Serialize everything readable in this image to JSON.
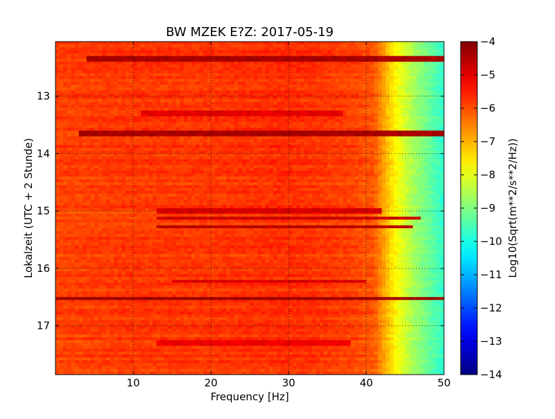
{
  "chart_data": {
    "type": "heatmap",
    "title": "BW MZEK E?Z: 2017-05-19",
    "xlabel": "Frequency [Hz]",
    "ylabel": "Lokalzeit (UTC + 2 Stunde)",
    "xlim": [
      0,
      50
    ],
    "ylim": [
      17.85,
      12.05
    ],
    "y_inverted": true,
    "grid": true,
    "x_ticks": [
      10,
      20,
      30,
      40,
      50
    ],
    "y_ticks": [
      13,
      14,
      15,
      16,
      17
    ],
    "colorbar": {
      "label": "Log10(Sqrt(m**2/s**2/Hz))",
      "range": [
        -14,
        -4
      ],
      "ticks": [
        -4,
        -5,
        -6,
        -7,
        -8,
        -9,
        -10,
        -11,
        -12,
        -13,
        -14
      ],
      "colormap": "jet"
    },
    "spectral_profile": {
      "frequency_hz": [
        0,
        10,
        20,
        30,
        35,
        38,
        41,
        42,
        43,
        44,
        45,
        46,
        47,
        48,
        49,
        50
      ],
      "value": [
        -5.9,
        -5.8,
        -5.8,
        -5.7,
        -5.8,
        -5.9,
        -6.1,
        -6.7,
        -7.3,
        -7.8,
        -8.2,
        -8.6,
        -8.9,
        -9.2,
        -9.5,
        -9.8
      ]
    },
    "dark_bands": [
      {
        "time_h": 12.35,
        "f_min": 4,
        "f_max": 50,
        "value": -4.4
      },
      {
        "time_h": 13.3,
        "f_min": 11,
        "f_max": 37,
        "value": -5.0
      },
      {
        "time_h": 13.65,
        "f_min": 3,
        "f_max": 50,
        "value": -4.4
      },
      {
        "time_h": 15.0,
        "f_min": 13,
        "f_max": 42,
        "value": -4.9
      },
      {
        "time_h": 15.12,
        "f_min": 13,
        "f_max": 47,
        "value": -4.7
      },
      {
        "time_h": 15.27,
        "f_min": 13,
        "f_max": 46,
        "value": -4.6
      },
      {
        "time_h": 16.22,
        "f_min": 15,
        "f_max": 40,
        "value": -4.9
      },
      {
        "time_h": 16.52,
        "f_min": 0,
        "f_max": 50,
        "value": -4.3
      },
      {
        "time_h": 17.3,
        "f_min": 13,
        "f_max": 38,
        "value": -5.1
      }
    ]
  }
}
